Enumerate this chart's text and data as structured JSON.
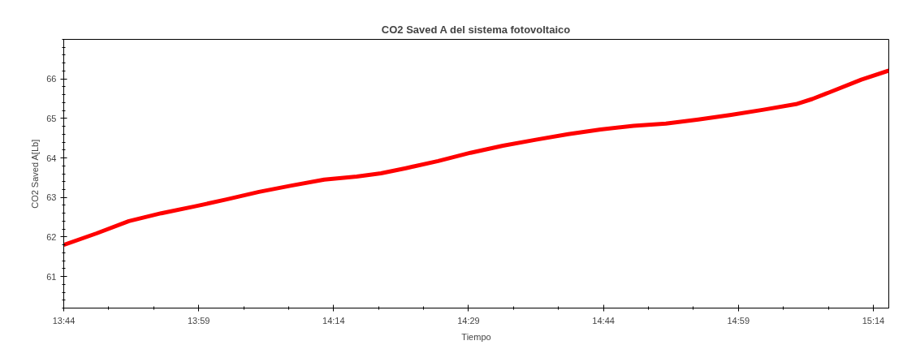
{
  "chart_data": {
    "type": "line",
    "title": "CO2 Saved A del sistema fotovoltaico",
    "xlabel": "Tiempo",
    "ylabel": "CO2 Saved A[Lb]",
    "x": [
      13.7333,
      13.794,
      13.854,
      13.914,
      13.975,
      14.035,
      14.095,
      14.155,
      14.216,
      14.276,
      14.321,
      14.367,
      14.427,
      14.487,
      14.547,
      14.608,
      14.668,
      14.728,
      14.789,
      14.849,
      14.909,
      14.97,
      15.03,
      15.09,
      15.12,
      15.15,
      15.211,
      15.262
    ],
    "series": [
      {
        "color": "#ff0000",
        "values": [
          61.8,
          62.09,
          62.4,
          62.6,
          62.77,
          62.95,
          63.14,
          63.3,
          63.45,
          63.53,
          63.61,
          63.74,
          63.92,
          64.13,
          64.31,
          64.46,
          64.6,
          64.72,
          64.81,
          64.87,
          64.97,
          65.09,
          65.22,
          65.36,
          65.49,
          65.65,
          65.98,
          66.21
        ]
      }
    ],
    "xlim": [
      13.7333,
      15.262
    ],
    "ylim": [
      60.2,
      67
    ],
    "xticks": [
      {
        "value": 13.7333,
        "label": "13:44"
      },
      {
        "value": 13.9833,
        "label": "13:59"
      },
      {
        "value": 14.2333,
        "label": "14:14"
      },
      {
        "value": 14.4833,
        "label": "14:29"
      },
      {
        "value": 14.7333,
        "label": "14:44"
      },
      {
        "value": 14.9833,
        "label": "14:59"
      },
      {
        "value": 15.2333,
        "label": "15:14"
      }
    ],
    "yticks": [
      61,
      62,
      63,
      64,
      65,
      66
    ],
    "grid": false,
    "marker": "none",
    "line_style": "solid"
  }
}
